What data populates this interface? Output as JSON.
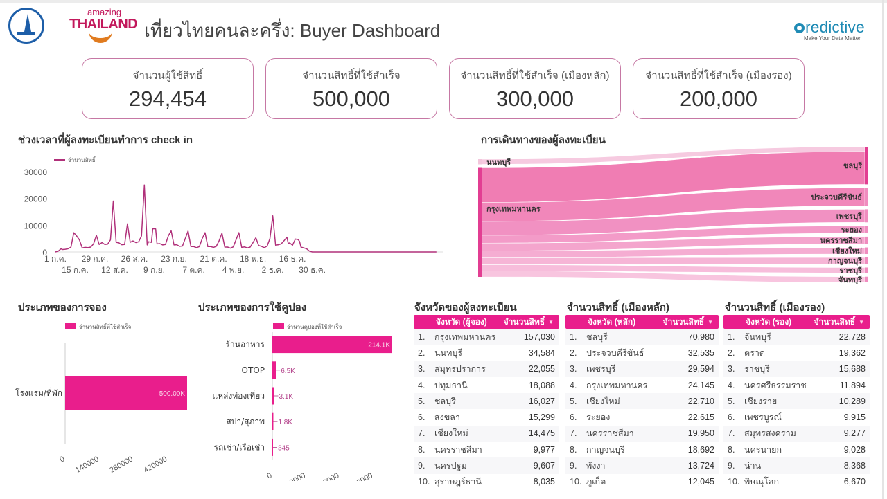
{
  "header": {
    "title": "เที่ยวไทยคนละครึ่ง: Buyer Dashboard",
    "left_logo_1": "TAT emblem",
    "left_logo_2_top": "amazing",
    "left_logo_2_main": "THAILAND",
    "right_logo_main": "redictive",
    "right_logo_tagline": "Make Your Data Matter"
  },
  "kpis": [
    {
      "label": "จำนวนผู้ใช้สิทธิ์",
      "value": "294,454"
    },
    {
      "label": "จำนวนสิทธิ์ที่ใช้สำเร็จ",
      "value": "500,000"
    },
    {
      "label": "จำนวนสิทธิ์ที่ใช้สำเร็จ (เมืองหลัก)",
      "value": "300,000"
    },
    {
      "label": "จำนวนสิทธิ์ที่ใช้สำเร็จ (เมืองรอง)",
      "value": "200,000"
    }
  ],
  "colors": {
    "accent": "#e91e8c",
    "line": "#b0307a",
    "card_border": "#c678a4",
    "sankey": "#ef72b0"
  },
  "sections": {
    "checkin": "ช่วงเวลาที่ผู้ลงทะเบียนทำการ check in",
    "travel": "การเดินทางของผู้ลงทะเบียน",
    "booking_type": "ประเภทของการจอง",
    "coupon_type": "ประเภทของการใช้คูปอง",
    "province_buyer": "จังหวัดของผู้ลงทะเบียน",
    "main_city": "จำนวนสิทธิ์ (เมืองหลัก)",
    "secondary_city": "จำนวนสิทธิ์ (เมืองรอง)"
  },
  "chart_data": [
    {
      "type": "line",
      "title": "ช่วงเวลาที่ผู้ลงทะเบียนทำการ check in",
      "legend": "จำนวนสิทธิ์",
      "legend_position": "top-left",
      "ylim": [
        0,
        30000
      ],
      "yticks": [
        "0",
        "10000",
        "20000",
        "30000"
      ],
      "xticks_top": [
        "1 ก.ค.",
        "29 ก.ค.",
        "26 ส.ค.",
        "23 ก.ย.",
        "21 ต.ค.",
        "18 พ.ย.",
        "16 ธ.ค."
      ],
      "xticks_bottom": [
        "15 ก.ค.",
        "12 ส.ค.",
        "9 ก.ย.",
        "7 ต.ค.",
        "4 พ.ย.",
        "2 ธ.ค.",
        "30 ธ.ค."
      ],
      "x_day_range": [
        0,
        182
      ],
      "points": [
        [
          0,
          0
        ],
        [
          2,
          300
        ],
        [
          4,
          1200
        ],
        [
          5,
          900
        ],
        [
          7,
          1000
        ],
        [
          9,
          1200
        ],
        [
          11,
          1800
        ],
        [
          13,
          7200
        ],
        [
          15,
          6000
        ],
        [
          17,
          4500
        ],
        [
          19,
          1500
        ],
        [
          21,
          1700
        ],
        [
          23,
          1600
        ],
        [
          25,
          1800
        ],
        [
          27,
          3000
        ],
        [
          29,
          6200
        ],
        [
          31,
          2800
        ],
        [
          33,
          3500
        ],
        [
          35,
          2800
        ],
        [
          37,
          2900
        ],
        [
          39,
          4500
        ],
        [
          41,
          19000
        ],
        [
          43,
          3600
        ],
        [
          45,
          3400
        ],
        [
          47,
          2700
        ],
        [
          49,
          2800
        ],
        [
          51,
          10500
        ],
        [
          53,
          3600
        ],
        [
          55,
          4100
        ],
        [
          57,
          3500
        ],
        [
          59,
          3800
        ],
        [
          61,
          6000
        ],
        [
          63,
          25000
        ],
        [
          65,
          2600
        ],
        [
          66,
          3800
        ],
        [
          68,
          3600
        ],
        [
          69,
          8700
        ],
        [
          71,
          8600
        ],
        [
          72,
          3000
        ],
        [
          74,
          3100
        ],
        [
          76,
          2600
        ],
        [
          78,
          2800
        ],
        [
          80,
          6000
        ],
        [
          82,
          7900
        ],
        [
          84,
          2600
        ],
        [
          86,
          2700
        ],
        [
          88,
          2100
        ],
        [
          90,
          2200
        ],
        [
          92,
          5000
        ],
        [
          94,
          7800
        ],
        [
          96,
          2000
        ],
        [
          98,
          2000
        ],
        [
          100,
          1600
        ],
        [
          102,
          2000
        ],
        [
          104,
          5000
        ],
        [
          106,
          7200
        ],
        [
          108,
          2000
        ],
        [
          110,
          2000
        ],
        [
          112,
          1700
        ],
        [
          114,
          2100
        ],
        [
          116,
          4200
        ],
        [
          118,
          7000
        ],
        [
          120,
          1800
        ],
        [
          122,
          1800
        ],
        [
          124,
          1400
        ],
        [
          126,
          1900
        ],
        [
          128,
          4600
        ],
        [
          130,
          7200
        ],
        [
          132,
          1700
        ],
        [
          134,
          1900
        ],
        [
          136,
          1500
        ],
        [
          138,
          1800
        ],
        [
          140,
          3500
        ],
        [
          142,
          5300
        ],
        [
          144,
          2400
        ],
        [
          146,
          2100
        ],
        [
          148,
          1600
        ],
        [
          150,
          2200
        ],
        [
          152,
          5000
        ],
        [
          154,
          13500
        ],
        [
          156,
          2500
        ],
        [
          158,
          2700
        ],
        [
          160,
          3000
        ],
        [
          162,
          4200
        ],
        [
          164,
          5500
        ],
        [
          165,
          3100
        ],
        [
          166,
          3400
        ],
        [
          168,
          2500
        ],
        [
          170,
          4800
        ],
        [
          172,
          4600
        ],
        [
          173,
          3900
        ],
        [
          174,
          1800
        ],
        [
          176,
          1500
        ],
        [
          178,
          1200
        ],
        [
          180,
          300
        ],
        [
          182,
          0
        ],
        [
          270,
          0
        ]
      ],
      "x_day_max": 275
    },
    {
      "type": "sankey",
      "title": "การเดินทางของผู้ลงทะเบียน",
      "sources": [
        "นนทบุรี",
        "กรุงเทพมหานคร"
      ],
      "targets": [
        "ชลบุรี",
        "ประจวบคีรีขันธ์",
        "เพชรบุรี",
        "ระยอง",
        "นครราชสีมา",
        "เชียงใหม่",
        "กาญจนบุรี",
        "ราชบุรี",
        "จันทบุรี"
      ],
      "links": [
        {
          "source": "นนทบุรี",
          "target": "ชลบุรี",
          "value": 6
        },
        {
          "source": "กรุงเทพมหานคร",
          "target": "ชลบุรี",
          "value": 40
        },
        {
          "source": "กรุงเทพมหานคร",
          "target": "ประจวบคีรีขันธ์",
          "value": 22
        },
        {
          "source": "กรุงเทพมหานคร",
          "target": "เพชรบุรี",
          "value": 16
        },
        {
          "source": "กรุงเทพมหานคร",
          "target": "ระยอง",
          "value": 9
        },
        {
          "source": "กรุงเทพมหานคร",
          "target": "นครราชสีมา",
          "value": 9
        },
        {
          "source": "กรุงเทพมหานคร",
          "target": "เชียงใหม่",
          "value": 8
        },
        {
          "source": "กรุงเทพมหานคร",
          "target": "กาญจนบุรี",
          "value": 8
        },
        {
          "source": "กรุงเทพมหานคร",
          "target": "ราชบุรี",
          "value": 7
        },
        {
          "source": "กรุงเทพมหานคร",
          "target": "จันทบุรี",
          "value": 7
        }
      ]
    },
    {
      "type": "bar",
      "orientation": "horizontal",
      "title": "ประเภทของการจอง",
      "legend": "จำนวนสิทธิ์ที่ใช้สำเร็จ",
      "categories": [
        "โรงแรม/ที่พัก"
      ],
      "values": [
        500000
      ],
      "value_labels": [
        "500.00K"
      ],
      "xticks": [
        "0",
        "140000",
        "280000",
        "420000"
      ],
      "xlim": [
        0,
        500000
      ]
    },
    {
      "type": "bar",
      "orientation": "horizontal",
      "title": "ประเภทของการใช้คูปอง",
      "legend": "จำนวนคูปองที่ใช้สำเร็จ",
      "categories": [
        "ร้านอาหาร",
        "OTOP",
        "แหล่งท่องเที่ยว",
        "สปา/สุภาพ",
        "รถเช่า/เรือเช่า"
      ],
      "values": [
        214100,
        6500,
        3100,
        1800,
        345
      ],
      "value_labels": [
        "214.1K",
        "6.5K",
        "3.1K",
        "1.8K",
        "345"
      ],
      "xticks": [
        "0",
        "60000",
        "120000",
        "180000"
      ],
      "xlim": [
        0,
        214100
      ]
    }
  ],
  "tables": [
    {
      "col1": "จังหวัด (ผู้จอง)",
      "col2": "จำนวนสิทธิ์",
      "rows": [
        {
          "rank": "1.",
          "name": "กรุงเทพมหานคร",
          "value": "157,030"
        },
        {
          "rank": "2.",
          "name": "นนทบุรี",
          "value": "34,584"
        },
        {
          "rank": "3.",
          "name": "สมุทรปราการ",
          "value": "22,055"
        },
        {
          "rank": "4.",
          "name": "ปทุมธานี",
          "value": "18,088"
        },
        {
          "rank": "5.",
          "name": "ชลบุรี",
          "value": "16,027"
        },
        {
          "rank": "6.",
          "name": "สงขลา",
          "value": "15,299"
        },
        {
          "rank": "7.",
          "name": "เชียงใหม่",
          "value": "14,475"
        },
        {
          "rank": "8.",
          "name": "นครราชสีมา",
          "value": "9,977"
        },
        {
          "rank": "9.",
          "name": "นครปฐม",
          "value": "9,607"
        },
        {
          "rank": "10.",
          "name": "สุราษฎร์ธานี",
          "value": "8,035"
        }
      ]
    },
    {
      "col1": "จังหวัด (หลัก)",
      "col2": "จำนวนสิทธิ์",
      "rows": [
        {
          "rank": "1.",
          "name": "ชลบุรี",
          "value": "70,980"
        },
        {
          "rank": "2.",
          "name": "ประจวบคีรีขันธ์",
          "value": "32,535"
        },
        {
          "rank": "3.",
          "name": "เพชรบุรี",
          "value": "29,594"
        },
        {
          "rank": "4.",
          "name": "กรุงเทพมหานคร",
          "value": "24,145"
        },
        {
          "rank": "5.",
          "name": "เชียงใหม่",
          "value": "22,710"
        },
        {
          "rank": "6.",
          "name": "ระยอง",
          "value": "22,615"
        },
        {
          "rank": "7.",
          "name": "นครราชสีมา",
          "value": "19,950"
        },
        {
          "rank": "8.",
          "name": "กาญจนบุรี",
          "value": "18,692"
        },
        {
          "rank": "9.",
          "name": "พังงา",
          "value": "13,724"
        },
        {
          "rank": "10.",
          "name": "ภูเก็ต",
          "value": "12,045"
        }
      ]
    },
    {
      "col1": "จังหวัด (รอง)",
      "col2": "จำนวนสิทธิ์",
      "rows": [
        {
          "rank": "1.",
          "name": "จันทบุรี",
          "value": "22,728"
        },
        {
          "rank": "2.",
          "name": "ตราด",
          "value": "19,362"
        },
        {
          "rank": "3.",
          "name": "ราชบุรี",
          "value": "15,688"
        },
        {
          "rank": "4.",
          "name": "นครศรีธรรมราช",
          "value": "11,894"
        },
        {
          "rank": "5.",
          "name": "เชียงราย",
          "value": "10,289"
        },
        {
          "rank": "6.",
          "name": "เพชรบูรณ์",
          "value": "9,915"
        },
        {
          "rank": "7.",
          "name": "สมุทรสงคราม",
          "value": "9,277"
        },
        {
          "rank": "8.",
          "name": "นครนายก",
          "value": "9,028"
        },
        {
          "rank": "9.",
          "name": "น่าน",
          "value": "8,368"
        },
        {
          "rank": "10.",
          "name": "พิษณุโลก",
          "value": "6,670"
        }
      ]
    }
  ],
  "sort_icon": "▼"
}
